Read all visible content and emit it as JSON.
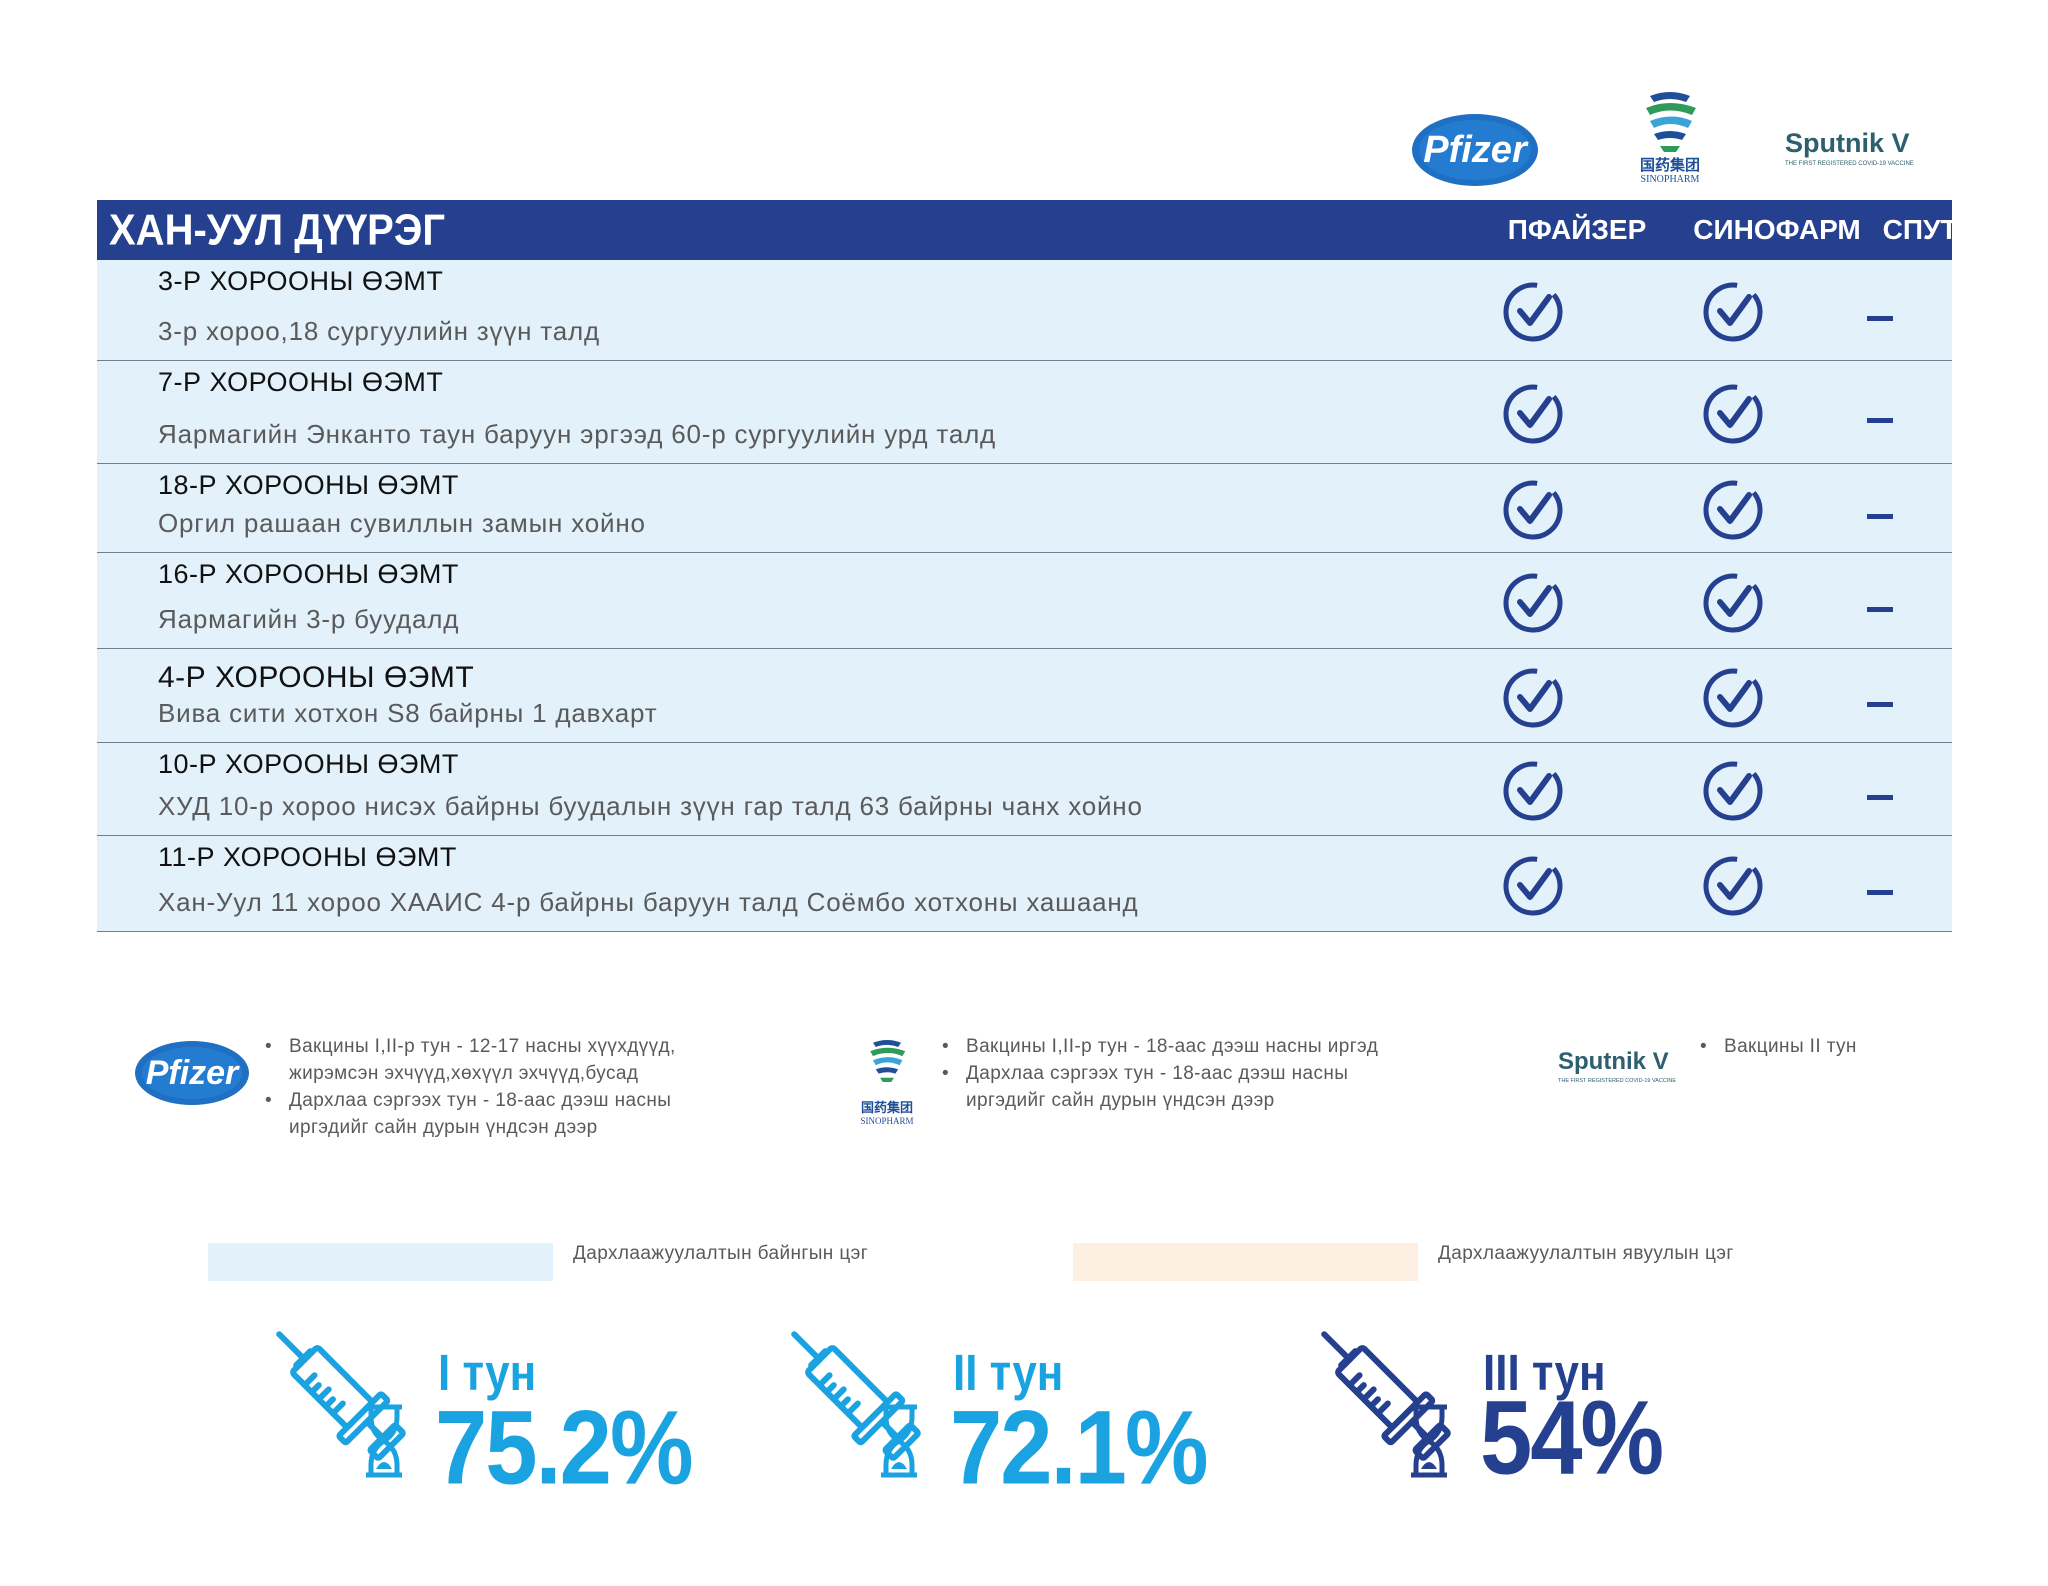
{
  "logos": {
    "pfizer": "Pfizer",
    "sinopharm_cn": "国药集团",
    "sinopharm": "SINOPHARM",
    "sputnik": "Sputnik V",
    "sputnik_tag": "THE FIRST REGISTERED COVID-19 VACCINE"
  },
  "table": {
    "district": "ХАН-УУЛ ДҮҮРЭГ",
    "columns": [
      "ПФАЙЗЕР",
      "СИНОФАРМ",
      "СПУТНИК V"
    ],
    "rows": [
      {
        "title": "3-Р ХОРООНЫ ӨЭМТ",
        "address": "3-р хороо,18 сургуулийн  зүүн талд",
        "pfizer": true,
        "sinopharm": true,
        "sputnik": false
      },
      {
        "title": "7-Р ХОРООНЫ ӨЭМТ",
        "address": "Яармагийн Энканто таун баруун эргээд 60-р сургуулийн урд талд",
        "pfizer": true,
        "sinopharm": true,
        "sputnik": false
      },
      {
        "title": "18-Р ХОРООНЫ ӨЭМТ",
        "address": "Оргил рашаан сувиллын замын хойно",
        "pfizer": true,
        "sinopharm": true,
        "sputnik": false
      },
      {
        "title": "16-Р ХОРООНЫ ӨЭМТ",
        "address": "Яармагийн 3-р буудалд",
        "pfizer": true,
        "sinopharm": true,
        "sputnik": false
      },
      {
        "title": "4-Р ХОРООНЫ ӨЭМТ",
        "address": "Вива сити хотхон S8 байрны 1 давхарт",
        "pfizer": true,
        "sinopharm": true,
        "sputnik": false
      },
      {
        "title": "10-Р ХОРООНЫ ӨЭМТ",
        "address": "ХУД 10-р хороо нисэх байрны буудалын зүүн гар талд 63 байрны чанх хойно",
        "pfizer": true,
        "sinopharm": true,
        "sputnik": false
      },
      {
        "title": "11-Р ХОРООНЫ ӨЭМТ",
        "address": "Хан-Уул 11 хороо ХААИС 4-р байрны баруун талд Соёмбо хотхоны хашаанд",
        "pfizer": true,
        "sinopharm": true,
        "sputnik": false
      }
    ]
  },
  "notes": {
    "pfizer": [
      "Вакцины I,II-р тун - 12-17 насны хүүхдүүд, жирэмсэн эхчүүд,хөхүүл эхчүүд,бусад",
      "Дархлаа сэргээх тун - 18-аас дээш насны иргэдийг сайн дурын үндсэн дээр"
    ],
    "sinopharm": [
      "Вакцины I,II-р тун - 18-аас дээш насны иргэд",
      "Дархлаа сэргээх тун - 18-аас дээш насны иргэдийг сайн дурын үндсэн дээр"
    ],
    "sputnik": [
      "Вакцины II тун"
    ]
  },
  "legend": {
    "fixed": {
      "label": "Дархлаажуулалтын байнгын цэг",
      "color": "#e3f1fb"
    },
    "mobile": {
      "label": "Дархлаажуулалтын явуулын цэг",
      "color": "#fdf0e3"
    }
  },
  "stats": [
    {
      "label": "I тун",
      "percent": "75.2%",
      "color": "#1aa3e0"
    },
    {
      "label": "II тун",
      "percent": "72.1%",
      "color": "#1aa3e0"
    },
    {
      "label": "III тун",
      "percent": "54%",
      "color": "#24408e"
    }
  ],
  "colors": {
    "navy": "#24408e",
    "light_blue": "#1aa3e0",
    "row_bg": "#e3f1fb"
  }
}
